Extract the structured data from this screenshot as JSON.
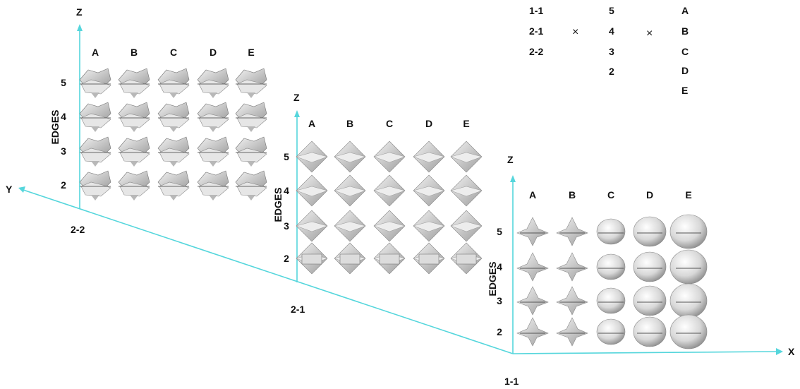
{
  "axes": {
    "x": "X",
    "y": "Y",
    "z": "Z",
    "x_color": "#55d6dc"
  },
  "legend": {
    "first": [
      "1-1",
      "2-1",
      "2-2"
    ],
    "times": "×",
    "second": [
      "5",
      "4",
      "3",
      "2"
    ],
    "third": [
      "A",
      "B",
      "C",
      "D",
      "E"
    ]
  },
  "panels": [
    {
      "id": "2-2",
      "origin_label": "2-2",
      "z_label": "Z",
      "edges_label": "EDGES",
      "columns": [
        "A",
        "B",
        "C",
        "D",
        "E"
      ],
      "rows": [
        "5",
        "4",
        "3",
        "2"
      ]
    },
    {
      "id": "2-1",
      "origin_label": "2-1",
      "z_label": "Z",
      "edges_label": "EDGES",
      "columns": [
        "A",
        "B",
        "C",
        "D",
        "E"
      ],
      "rows": [
        "5",
        "4",
        "3",
        "2"
      ]
    },
    {
      "id": "1-1",
      "origin_label": "1-1",
      "z_label": "Z",
      "edges_label": "EDGES",
      "columns": [
        "A",
        "B",
        "C",
        "D",
        "E"
      ],
      "rows": [
        "5",
        "4",
        "3",
        "2"
      ]
    }
  ]
}
